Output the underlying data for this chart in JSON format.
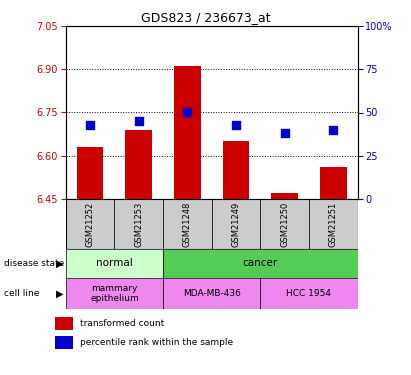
{
  "title": "GDS823 / 236673_at",
  "samples": [
    "GSM21252",
    "GSM21253",
    "GSM21248",
    "GSM21249",
    "GSM21250",
    "GSM21251"
  ],
  "transformed_counts": [
    6.63,
    6.69,
    6.91,
    6.65,
    6.47,
    6.56
  ],
  "percentile_ranks": [
    43,
    45,
    50,
    43,
    38,
    40
  ],
  "ylim_left": [
    6.45,
    7.05
  ],
  "ylim_right": [
    0,
    100
  ],
  "yticks_left": [
    6.45,
    6.6,
    6.75,
    6.9,
    7.05
  ],
  "yticks_right": [
    0,
    25,
    50,
    75,
    100
  ],
  "bar_color": "#cc0000",
  "dot_color": "#0000cc",
  "normal_color": "#ccffcc",
  "cancer_color": "#55cc55",
  "cell_line_color": "#ee88ee",
  "label_bg_color": "#cccccc",
  "bar_width": 0.55,
  "dot_size": 28,
  "title_fontsize": 9,
  "tick_fontsize": 7,
  "label_fontsize": 7,
  "row_label_fontsize": 7
}
